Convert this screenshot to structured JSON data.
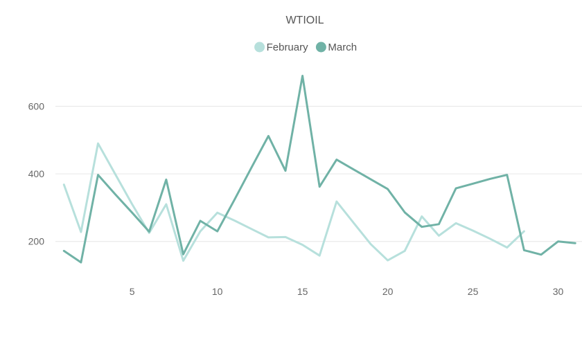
{
  "chart_data": {
    "type": "line",
    "title": "WTIOIL",
    "xlabel": "",
    "ylabel": "",
    "legend_position": "top",
    "grid": "horizontal",
    "xlim": [
      0.5,
      31.4
    ],
    "ylim": [
      95,
      730
    ],
    "x_ticks": [
      5,
      10,
      15,
      20,
      25,
      30
    ],
    "y_ticks": [
      200,
      400,
      600
    ],
    "series": [
      {
        "name": "February",
        "color": "#b7e0dc",
        "x": [
          1,
          2,
          3,
          4,
          5,
          6,
          7,
          8,
          9,
          10,
          11,
          12,
          13,
          14,
          15,
          16,
          17,
          18,
          19,
          20,
          21,
          22,
          23,
          24,
          25,
          26,
          27,
          28
        ],
        "values": [
          368,
          228,
          490,
          400,
          310,
          225,
          310,
          143,
          230,
          285,
          262,
          237,
          212,
          213,
          190,
          158,
          318,
          255,
          192,
          144,
          172,
          274,
          217,
          254,
          232,
          208,
          182,
          230
        ]
      },
      {
        "name": "March",
        "color": "#70b2a6",
        "x": [
          1,
          2,
          3,
          4,
          5,
          6,
          7,
          8,
          9,
          10,
          11,
          12,
          13,
          14,
          15,
          16,
          17,
          18,
          19,
          20,
          21,
          22,
          23,
          24,
          25,
          26,
          27,
          28,
          29,
          30,
          31
        ],
        "values": [
          172,
          138,
          397,
          340,
          285,
          229,
          383,
          162,
          261,
          230,
          323,
          418,
          512,
          409,
          690,
          362,
          442,
          413,
          384,
          355,
          286,
          243,
          251,
          357,
          371,
          385,
          397,
          174,
          161,
          200,
          195
        ]
      }
    ]
  }
}
